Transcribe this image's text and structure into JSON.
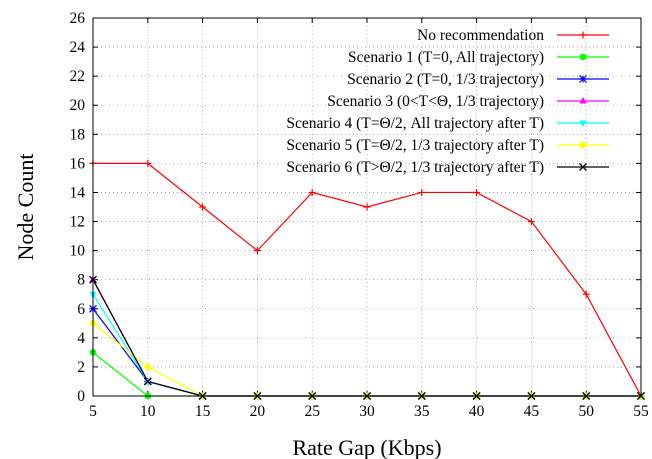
{
  "chart_data": {
    "type": "line",
    "title": "",
    "xlabel": "Rate Gap (Kbps)",
    "ylabel": "Node Count",
    "x": [
      5,
      10,
      15,
      20,
      25,
      30,
      35,
      40,
      45,
      50,
      55
    ],
    "xlim": [
      5,
      55
    ],
    "ylim": [
      0,
      26
    ],
    "xticks": [
      5,
      10,
      15,
      20,
      25,
      30,
      35,
      40,
      45,
      50,
      55
    ],
    "yticks": [
      0,
      2,
      4,
      6,
      8,
      10,
      12,
      14,
      16,
      18,
      20,
      22,
      24,
      26
    ],
    "grid": true,
    "legend_position": "top-right",
    "series": [
      {
        "name": "No recommendation",
        "color": "#ff0000",
        "marker": "plus",
        "values": [
          16,
          16,
          13,
          10,
          14,
          13,
          14,
          14,
          12,
          7,
          0
        ]
      },
      {
        "name": "Scenario 1 (T=0, All trajectory)",
        "color": "#00ff00",
        "marker": "circle",
        "values": [
          3,
          0,
          0,
          0,
          0,
          0,
          0,
          0,
          0,
          0,
          0
        ]
      },
      {
        "name": "Scenario 2 (T=0, 1/3 trajectory)",
        "color": "#0000ff",
        "marker": "star",
        "values": [
          6,
          1,
          0,
          0,
          0,
          0,
          0,
          0,
          0,
          0,
          0
        ]
      },
      {
        "name": "Scenario 3 (0<T<Θ, 1/3 trajectory)",
        "color": "#ff00ff",
        "marker": "triangle",
        "values": [
          8,
          1,
          0,
          0,
          0,
          0,
          0,
          0,
          0,
          0,
          0
        ]
      },
      {
        "name": "Scenario 4 (T=Θ/2, All trajectory after T)",
        "color": "#00ffff",
        "marker": "triangle-down",
        "values": [
          7,
          1,
          0,
          0,
          0,
          0,
          0,
          0,
          0,
          0,
          0
        ]
      },
      {
        "name": "Scenario 5 (T=Θ/2, 1/3 trajectory after T)",
        "color": "#ffff00",
        "marker": "circle",
        "values": [
          5,
          2,
          0,
          0,
          0,
          0,
          0,
          0,
          0,
          0,
          0
        ]
      },
      {
        "name": "Scenario 6 (T>Θ/2, 1/3 trajectory after T)",
        "color": "#000000",
        "marker": "cross",
        "values": [
          8,
          1,
          0,
          0,
          0,
          0,
          0,
          0,
          0,
          0,
          0
        ]
      }
    ]
  }
}
